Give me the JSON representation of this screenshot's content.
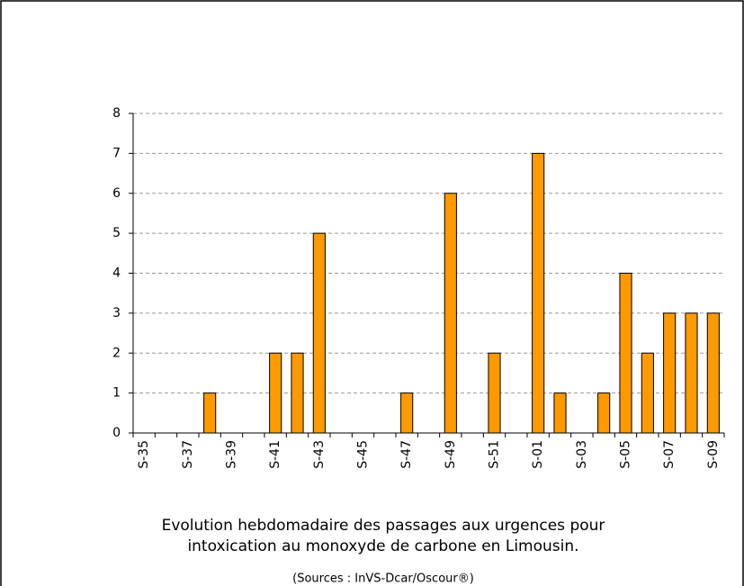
{
  "chart_data": {
    "type": "bar",
    "title": [
      "Evolution hebdomadaire des passages aux urgences pour",
      "intoxication au monoxyde de carbone en Limousin."
    ],
    "source": "(Sources : InVS-Dcar/Oscour®)",
    "categories": [
      "S-35",
      null,
      "S-37",
      null,
      "S-39",
      null,
      "S-41",
      null,
      "S-43",
      null,
      "S-45",
      null,
      "S-47",
      null,
      "S-49",
      null,
      "S-51",
      null,
      "S-01",
      null,
      "S-03",
      null,
      "S-05",
      null,
      "S-07",
      null,
      "S-09"
    ],
    "values": [
      0,
      0,
      0,
      1,
      0,
      0,
      2,
      2,
      5,
      0,
      0,
      0,
      1,
      0,
      6,
      0,
      2,
      0,
      7,
      1,
      0,
      1,
      4,
      2,
      3,
      3,
      3
    ],
    "color": "#ff9900",
    "ylim": [
      0,
      8
    ],
    "yticks": [
      0,
      1,
      2,
      3,
      4,
      5,
      6,
      7,
      8
    ],
    "grid": true
  }
}
